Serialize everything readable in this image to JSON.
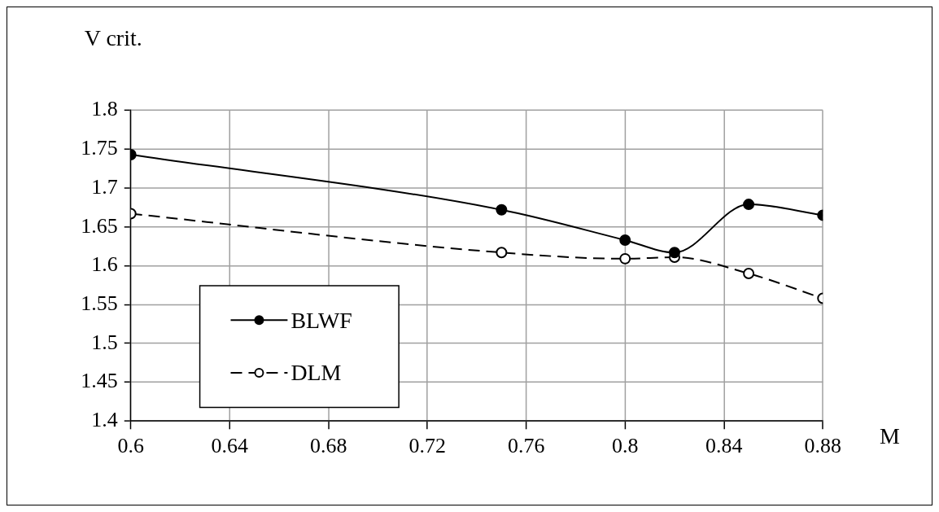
{
  "chart_data": {
    "type": "line",
    "xlabel": "M",
    "ylabel": "V crit.",
    "x": [
      0.6,
      0.75,
      0.8,
      0.82,
      0.85,
      0.88
    ],
    "series": [
      {
        "name": "BLWF",
        "color": "#000000",
        "line_style": "solid",
        "values": [
          1.743,
          1.672,
          1.633,
          1.617,
          1.679,
          1.665
        ]
      },
      {
        "name": "DLM",
        "color": "#000000",
        "line_style": "dashed",
        "values": [
          1.667,
          1.617,
          1.609,
          1.611,
          1.59,
          1.558
        ]
      }
    ],
    "xlim": [
      0.6,
      0.88
    ],
    "xticks": [
      0.6,
      0.64,
      0.68,
      0.72,
      0.76,
      0.8,
      0.84,
      0.88
    ],
    "ylim": [
      1.4,
      1.8
    ],
    "yticks": [
      1.4,
      1.45,
      1.5,
      1.55,
      1.6,
      1.65,
      1.7,
      1.75,
      1.8
    ],
    "grid": true,
    "legend": "bottom left",
    "marker": "circle"
  }
}
